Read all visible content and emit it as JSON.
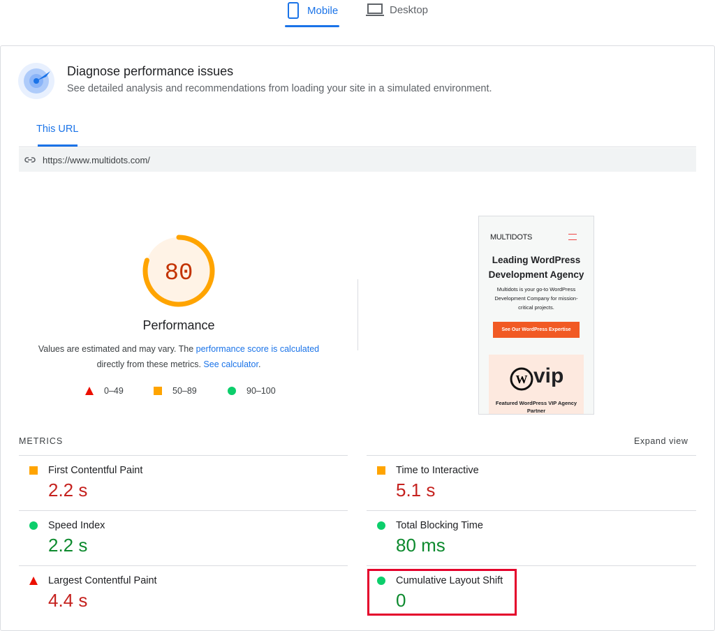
{
  "tabs": [
    "Mobile",
    "Desktop"
  ],
  "header": {
    "title": "Diagnose performance issues",
    "subtitle": "See detailed analysis and recommendations from loading your site in a simulated environment."
  },
  "url_tab": "This URL",
  "url": "https://www.multidots.com/",
  "score": {
    "value": 80,
    "max": 100,
    "label": "Performance",
    "color": "#ffa400",
    "text_color": "#c33300"
  },
  "note": {
    "text1": "Values are estimated and may vary. The ",
    "link1": "performance score is calculated",
    "text2": "directly from these metrics. ",
    "link2": "See calculator",
    "text3": "."
  },
  "legend": [
    {
      "label": "0–49",
      "icon": "triangle",
      "color": "#eb0f00"
    },
    {
      "label": "50–89",
      "icon": "square",
      "color": "#ffa400"
    },
    {
      "label": "90–100",
      "icon": "circle",
      "color": "#0cce6b"
    }
  ],
  "preview": {
    "brand": "MULTIDOTS",
    "headline": "Leading WordPress Development Agency",
    "body": "Multidots is your go-to WordPress Development Company for mission-critical projects.",
    "button": "See Our WordPress Expertise",
    "logo": "vip",
    "caption": "Featured WordPress VIP Agency Partner"
  },
  "metrics_heading": "METRICS",
  "expand": "Expand view",
  "metrics": [
    {
      "name": "First Contentful Paint",
      "value": "2.2 s",
      "icon": "square",
      "color": "#ffa400",
      "value_color": "#c5221f"
    },
    {
      "name": "Time to Interactive",
      "value": "5.1 s",
      "icon": "square",
      "color": "#ffa400",
      "value_color": "#c5221f"
    },
    {
      "name": "Speed Index",
      "value": "2.2 s",
      "icon": "circle",
      "color": "#0cce6b",
      "value_color": "#0d8a2e"
    },
    {
      "name": "Total Blocking Time",
      "value": "80 ms",
      "icon": "circle",
      "color": "#0cce6b",
      "value_color": "#0d8a2e"
    },
    {
      "name": "Largest Contentful Paint",
      "value": "4.4 s",
      "icon": "triangle",
      "color": "#eb0f00",
      "value_color": "#c5221f"
    },
    {
      "name": "Cumulative Layout Shift",
      "value": "0",
      "icon": "circle",
      "color": "#0cce6b",
      "value_color": "#0d8a2e",
      "highlight": true
    }
  ]
}
